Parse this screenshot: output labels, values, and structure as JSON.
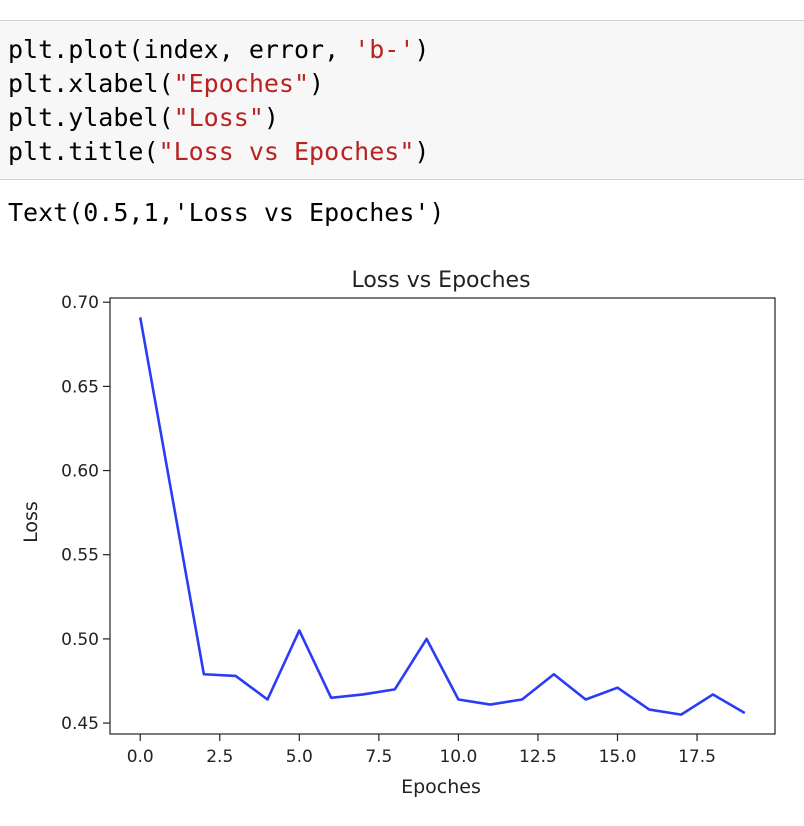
{
  "code_cell": {
    "lines": [
      {
        "pre": "plt.plot(index, error, ",
        "str": "'b-'",
        "post": ")"
      },
      {
        "pre": "plt.xlabel(",
        "str": "\"Epoches\"",
        "post": ")"
      },
      {
        "pre": "plt.ylabel(",
        "str": "\"Loss\"",
        "post": ")"
      },
      {
        "pre": "plt.title(",
        "str": "\"Loss vs Epoches\"",
        "post": ")"
      }
    ]
  },
  "output": {
    "text": "Text(0.5,1,'Loss vs Epoches')"
  },
  "chart_data": {
    "type": "line",
    "title": "Loss vs Epoches",
    "xlabel": "Epoches",
    "ylabel": "Loss",
    "x": [
      0,
      1,
      2,
      3,
      4,
      5,
      6,
      7,
      8,
      9,
      10,
      11,
      12,
      13,
      14,
      15,
      16,
      17,
      18,
      19
    ],
    "series": [
      {
        "values": [
          0.691,
          0.585,
          0.479,
          0.478,
          0.464,
          0.505,
          0.465,
          0.467,
          0.47,
          0.5,
          0.464,
          0.461,
          0.464,
          0.479,
          0.464,
          0.471,
          0.458,
          0.455,
          0.467,
          0.456
        ],
        "color": "#2a3cf5"
      }
    ],
    "xlim": [
      -0.95,
      19.95
    ],
    "ylim": [
      0.4435,
      0.7025
    ],
    "xticks": [
      0.0,
      2.5,
      5.0,
      7.5,
      10.0,
      12.5,
      15.0,
      17.5
    ],
    "xtick_labels": [
      "0.0",
      "2.5",
      "5.0",
      "7.5",
      "10.0",
      "12.5",
      "15.0",
      "17.5"
    ],
    "yticks": [
      0.45,
      0.5,
      0.55,
      0.6,
      0.65,
      0.7
    ],
    "ytick_labels": [
      "0.45",
      "0.50",
      "0.55",
      "0.60",
      "0.65",
      "0.70"
    ],
    "grid": false,
    "legend": "none"
  }
}
